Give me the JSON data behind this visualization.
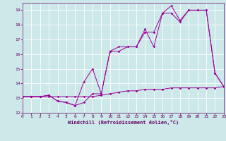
{
  "background_color": "#cce8e8",
  "grid_color": "#ffffff",
  "line_color": "#990099",
  "xlabel": "Windchill (Refroidissement éolien,°C)",
  "xlim": [
    0,
    23
  ],
  "ylim": [
    12,
    19.5
  ],
  "series1_x": [
    0,
    1,
    2,
    3,
    4,
    5,
    6,
    7,
    8,
    9,
    10,
    11,
    12,
    13,
    14,
    15,
    16,
    17,
    18,
    19,
    20,
    21,
    22,
    23
  ],
  "series1_y": [
    13.1,
    13.1,
    13.1,
    13.1,
    13.1,
    13.1,
    13.1,
    13.1,
    13.1,
    13.2,
    13.3,
    13.4,
    13.5,
    13.5,
    13.6,
    13.6,
    13.6,
    13.7,
    13.7,
    13.7,
    13.7,
    13.7,
    13.7,
    13.8
  ],
  "series2_x": [
    0,
    1,
    2,
    3,
    4,
    5,
    6,
    7,
    8,
    9,
    10,
    11,
    12,
    13,
    14,
    15,
    16,
    17,
    18,
    19,
    20,
    21,
    22,
    23
  ],
  "series2_y": [
    13.1,
    13.1,
    13.1,
    13.2,
    12.8,
    12.7,
    12.5,
    12.7,
    13.3,
    13.3,
    16.2,
    16.2,
    16.5,
    16.5,
    17.5,
    17.5,
    18.8,
    18.8,
    18.2,
    19.0,
    19.0,
    19.0,
    14.7,
    13.8
  ],
  "series3_x": [
    0,
    1,
    2,
    3,
    4,
    5,
    6,
    7,
    8,
    9,
    10,
    11,
    12,
    13,
    14,
    15,
    16,
    17,
    18,
    19,
    20,
    21,
    22,
    23
  ],
  "series3_y": [
    13.1,
    13.1,
    13.1,
    13.2,
    12.8,
    12.7,
    12.5,
    14.1,
    15.0,
    13.3,
    16.2,
    16.5,
    16.5,
    16.5,
    17.7,
    16.5,
    18.8,
    19.3,
    18.3,
    19.0,
    19.0,
    19.0,
    14.7,
    13.8
  ],
  "tick_fontsize": 4.5,
  "xlabel_fontsize": 5.0,
  "marker_size": 1.8,
  "line_width": 0.7
}
